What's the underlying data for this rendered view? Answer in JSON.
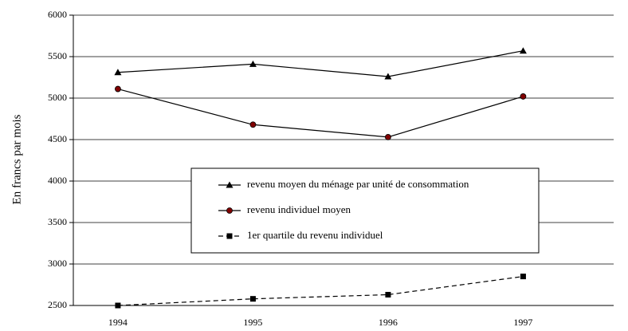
{
  "chart_data": {
    "type": "line",
    "y_label": "En francs par mois",
    "categories": [
      "1994",
      "1995",
      "1996",
      "1997"
    ],
    "series": [
      {
        "name": "revenu moyen du ménage par unité de consommation",
        "color": "#000000",
        "marker": "triangle",
        "marker_color": "#000000",
        "dashed": false,
        "values": [
          5310,
          5410,
          5260,
          5570
        ]
      },
      {
        "name": "revenu individuel moyen",
        "color": "#000000",
        "marker": "circle",
        "marker_color": "#800000",
        "dashed": false,
        "values": [
          5110,
          4680,
          4530,
          5020
        ]
      },
      {
        "name": "1er quartile du revenu individuel",
        "color": "#000000",
        "marker": "square",
        "marker_color": "#000000",
        "dashed": true,
        "values": [
          2500,
          2580,
          2630,
          2850
        ]
      }
    ],
    "ylim": [
      2500,
      6000
    ],
    "yticks": [
      2500,
      3000,
      3500,
      4000,
      4500,
      5000,
      5500,
      6000
    ],
    "grid": true
  }
}
